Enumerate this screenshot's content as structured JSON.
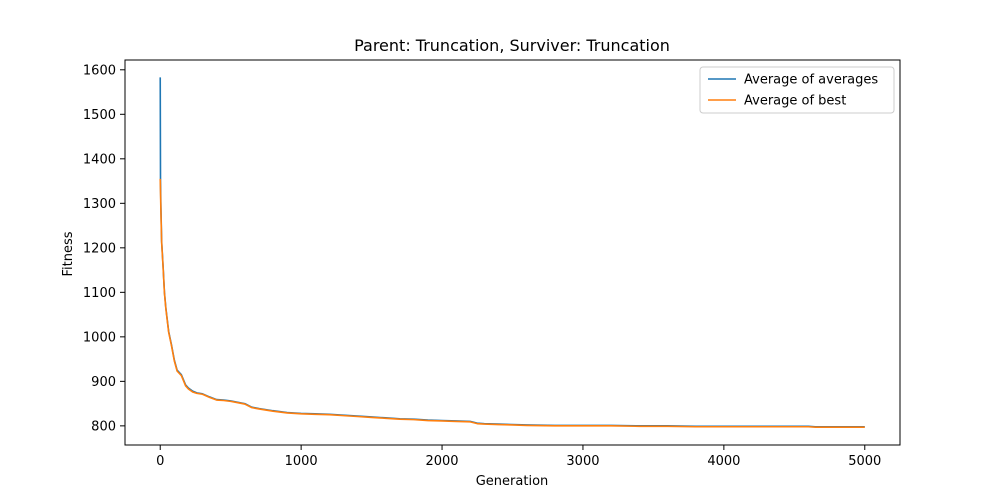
{
  "chart_data": {
    "type": "line",
    "title": "Parent: Truncation, Surviver: Truncation",
    "xlabel": "Generation",
    "ylabel": "Fitness",
    "xlim": [
      -250,
      5250
    ],
    "ylim": [
      757,
      1622
    ],
    "xticks": [
      0,
      1000,
      2000,
      3000,
      4000,
      5000
    ],
    "yticks": [
      800,
      900,
      1000,
      1100,
      1200,
      1300,
      1400,
      1500,
      1600
    ],
    "grid": false,
    "legend_position": "top-right",
    "series": [
      {
        "name": "Average of averages",
        "color": "#1f77b4",
        "x": [
          0,
          2,
          5,
          10,
          20,
          30,
          40,
          60,
          80,
          100,
          120,
          150,
          180,
          200,
          230,
          260,
          300,
          350,
          400,
          450,
          500,
          550,
          600,
          650,
          700,
          800,
          900,
          1000,
          1100,
          1200,
          1300,
          1400,
          1500,
          1600,
          1700,
          1800,
          1900,
          2000,
          2100,
          2200,
          2250,
          2300,
          2400,
          2500,
          2600,
          2800,
          3000,
          3200,
          3400,
          3600,
          3800,
          4000,
          4200,
          4400,
          4600,
          4650,
          4800,
          5000
        ],
        "y": [
          1583,
          1350,
          1290,
          1215,
          1160,
          1100,
          1065,
          1012,
          982,
          948,
          925,
          915,
          892,
          885,
          878,
          874,
          872,
          865,
          859,
          858,
          856,
          853,
          850,
          842,
          839,
          834,
          830,
          828,
          827,
          826,
          824,
          822,
          820,
          818,
          816,
          815,
          813,
          812,
          811,
          810,
          806,
          805,
          804,
          803,
          802,
          801,
          801,
          801,
          800,
          800,
          799,
          799,
          799,
          799,
          799,
          798,
          798,
          798
        ]
      },
      {
        "name": "Average of best",
        "color": "#ff7f0e",
        "x": [
          0,
          5,
          10,
          20,
          30,
          40,
          60,
          80,
          100,
          120,
          150,
          180,
          200,
          230,
          260,
          300,
          350,
          400,
          450,
          500,
          550,
          600,
          650,
          700,
          800,
          900,
          1000,
          1100,
          1200,
          1300,
          1400,
          1500,
          1600,
          1700,
          1800,
          1900,
          2000,
          2100,
          2200,
          2250,
          2300,
          2400,
          2500,
          2600,
          2800,
          3000,
          3200,
          3400,
          3600,
          3800,
          4000,
          4200,
          4400,
          4600,
          4650,
          4800,
          5000
        ],
        "y": [
          1355,
          1280,
          1212,
          1158,
          1098,
          1063,
          1010,
          980,
          946,
          923,
          913,
          890,
          883,
          876,
          873,
          871,
          864,
          858,
          857,
          855,
          852,
          849,
          841,
          838,
          833,
          829,
          827,
          826,
          825,
          823,
          821,
          819,
          817,
          815,
          814,
          812,
          811,
          810,
          809,
          805,
          804,
          803,
          802,
          801,
          800,
          800,
          800,
          799,
          799,
          798,
          798,
          798,
          798,
          798,
          797,
          797,
          797
        ]
      }
    ]
  }
}
